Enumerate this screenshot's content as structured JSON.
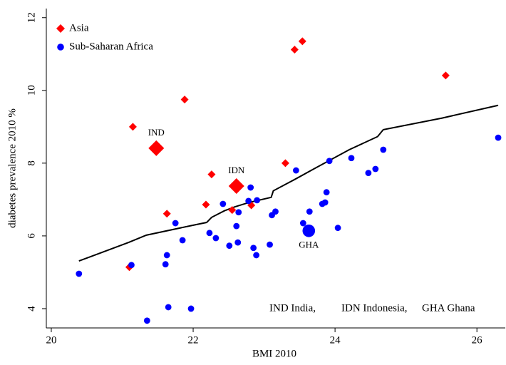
{
  "chart_data": {
    "type": "scatter",
    "xlabel": "BMI 2010",
    "ylabel": "diabetes prevalence 2010 %",
    "xlim": [
      19.93,
      26.4
    ],
    "ylim": [
      3.47,
      12.25
    ],
    "xticks": [
      20,
      22,
      24,
      26
    ],
    "yticks": [
      4,
      6,
      8,
      10,
      12
    ],
    "legend": "upper left",
    "series": [
      {
        "name": "Asia",
        "color": "#ff0000",
        "marker": "diamond",
        "x": [
          21.48,
          21.15,
          21.88,
          23.43,
          23.54,
          25.56,
          23.3,
          22.61,
          22.26,
          22.18,
          21.63,
          22.55,
          22.82,
          21.1
        ],
        "y": [
          8.41,
          9.0,
          9.75,
          11.12,
          11.35,
          10.41,
          8.0,
          7.37,
          7.69,
          6.86,
          6.61,
          6.71,
          6.84,
          5.14
        ]
      },
      {
        "name": "Sub-Saharan Africa",
        "color": "#0000ff",
        "marker": "circle",
        "x": [
          20.39,
          21.13,
          21.35,
          21.65,
          21.97,
          21.63,
          21.61,
          21.75,
          21.85,
          22.23,
          22.32,
          22.42,
          22.51,
          22.63,
          22.61,
          22.64,
          22.78,
          22.81,
          22.9,
          22.85,
          22.89,
          23.08,
          23.11,
          23.16,
          23.45,
          23.55,
          23.63,
          23.64,
          23.82,
          23.86,
          23.88,
          23.92,
          24.04,
          24.23,
          24.47,
          24.57,
          24.68,
          26.3
        ],
        "y": [
          4.96,
          5.2,
          3.67,
          4.04,
          4.0,
          5.47,
          5.22,
          6.35,
          5.88,
          6.08,
          5.94,
          6.88,
          5.73,
          5.82,
          6.27,
          6.65,
          6.96,
          7.33,
          6.98,
          5.67,
          5.47,
          5.76,
          6.57,
          6.67,
          7.8,
          6.35,
          6.14,
          6.67,
          6.88,
          6.92,
          7.2,
          8.06,
          6.22,
          8.14,
          7.73,
          7.84,
          8.37,
          8.7
        ]
      }
    ],
    "fit_line": {
      "color": "#000000",
      "x": [
        20.39,
        21.09,
        21.34,
        21.99,
        22.19,
        22.26,
        22.44,
        22.59,
        22.79,
        23.1,
        23.13,
        23.43,
        23.7,
        24.2,
        24.6,
        24.68,
        25.51,
        26.3
      ],
      "y": [
        5.31,
        5.82,
        6.02,
        6.29,
        6.37,
        6.51,
        6.69,
        6.8,
        6.92,
        7.06,
        7.24,
        7.55,
        7.84,
        8.37,
        8.73,
        8.92,
        9.24,
        9.59
      ]
    },
    "annotations": [
      {
        "text": "IND",
        "x": 21.48,
        "y": 8.41
      },
      {
        "text": "IDN",
        "x": 22.61,
        "y": 7.37
      },
      {
        "text": "GHA",
        "x": 23.63,
        "y": 6.14
      }
    ],
    "footnote": [
      "IND India,",
      "IDN Indonesia,",
      "GHA Ghana"
    ]
  }
}
